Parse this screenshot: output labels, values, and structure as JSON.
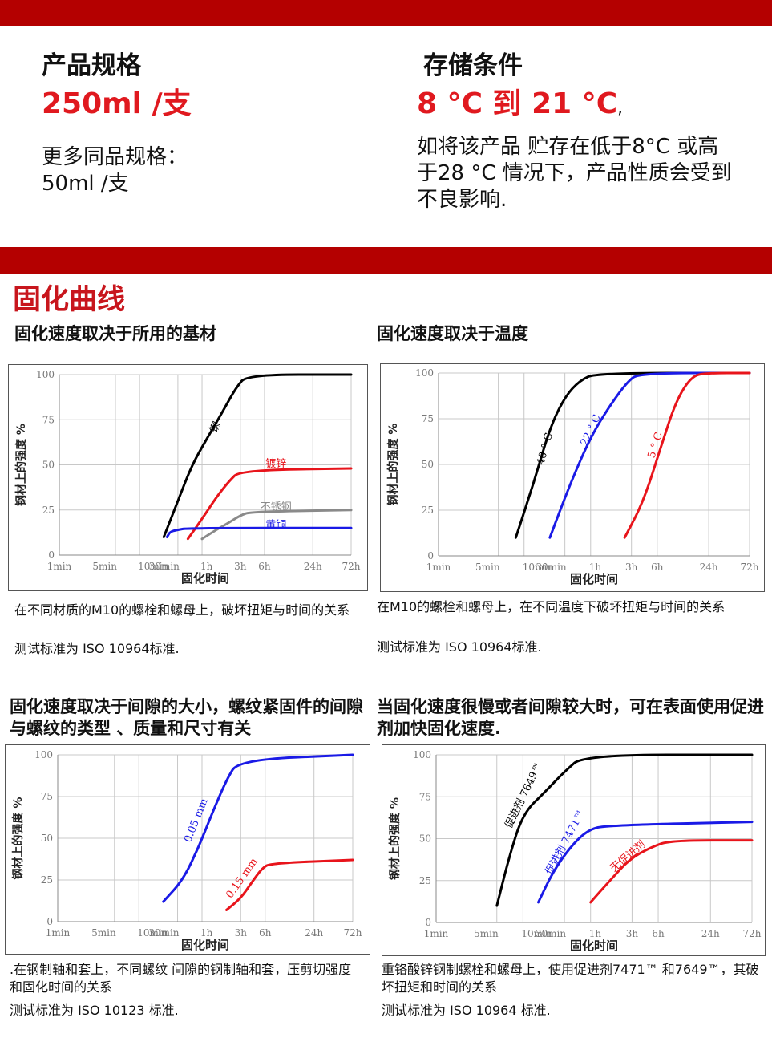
{
  "spec": {
    "heading": "产品规格",
    "value": "250ml /支",
    "more_label": "更多同品规格：",
    "more_value": "50ml /支"
  },
  "storage": {
    "heading": "存储条件",
    "value": "8 °C 到 21 °C",
    "value_suffix": ",",
    "note": "如将该产品 贮存在低于8°C 或高于28 °C 情况下，产品性质会受到不良影响."
  },
  "section_title": "固化曲线",
  "axis": {
    "y_label": "钢材上的强度 %",
    "x_label": "固化时间",
    "y_ticks": [
      "0",
      "25",
      "50",
      "75",
      "100"
    ],
    "x_ticks": [
      "1min",
      "5min",
      "10min",
      "30min",
      "1h",
      "3h",
      "6h",
      "24h",
      "72h"
    ]
  },
  "colors": {
    "black": "#000000",
    "red": "#e8141b",
    "blue": "#1a1ae6",
    "gray": "#8a8a8a",
    "brand": "#b40000"
  },
  "charts": [
    {
      "title": "固化速度取决于所用的基材",
      "caption": "在不同材质的M10的螺栓和螺母上，破坏扭矩与时间的关系",
      "standard": "测试标准为 ISO 10964标准.",
      "chart_data": {
        "type": "line",
        "x_scale": "log (time)",
        "x_unit": "minutes",
        "ylim": [
          0,
          100
        ],
        "grid": true,
        "series": [
          {
            "name": "钢",
            "color": "black",
            "points": [
              [
                20,
                10
              ],
              [
                30,
                30
              ],
              [
                45,
                50
              ],
              [
                70,
                65
              ],
              [
                110,
                80
              ],
              [
                160,
                93
              ],
              [
                220,
                100
              ],
              [
                4320,
                100
              ]
            ]
          },
          {
            "name": "镀锌",
            "color": "red",
            "points": [
              [
                40,
                9
              ],
              [
                60,
                20
              ],
              [
                90,
                32
              ],
              [
                130,
                41
              ],
              [
                180,
                47
              ],
              [
                4320,
                48
              ]
            ]
          },
          {
            "name": "不锈钢",
            "color": "gray",
            "points": [
              [
                60,
                9
              ],
              [
                90,
                14
              ],
              [
                130,
                18
              ],
              [
                180,
                22
              ],
              [
                240,
                24
              ],
              [
                4320,
                25
              ]
            ]
          },
          {
            "name": "黄铜",
            "color": "blue",
            "points": [
              [
                22,
                10
              ],
              [
                24,
                13
              ],
              [
                30,
                14
              ],
              [
                40,
                15
              ],
              [
                4320,
                15
              ]
            ]
          }
        ]
      }
    },
    {
      "title": "固化速度取决于温度",
      "caption": "在M10的螺栓和螺母上，在不同温度下破坏扭矩与时间的关系",
      "standard": "测试标准为 ISO 10964标准.",
      "chart_data": {
        "type": "line",
        "x_scale": "log (time)",
        "x_unit": "minutes",
        "ylim": [
          0,
          100
        ],
        "grid": true,
        "series": [
          {
            "name": "40 ° C",
            "color": "black",
            "points": [
              [
                8,
                10
              ],
              [
                13,
                40
              ],
              [
                20,
                70
              ],
              [
                30,
                87
              ],
              [
                45,
                96
              ],
              [
                70,
                100
              ],
              [
                4320,
                100
              ]
            ]
          },
          {
            "name": "22 ° C",
            "color": "blue",
            "points": [
              [
                20,
                10
              ],
              [
                35,
                40
              ],
              [
                60,
                65
              ],
              [
                100,
                82
              ],
              [
                160,
                95
              ],
              [
                220,
                100
              ],
              [
                4320,
                100
              ]
            ]
          },
          {
            "name": "5 ° C",
            "color": "red",
            "points": [
              [
                150,
                10
              ],
              [
                250,
                30
              ],
              [
                400,
                60
              ],
              [
                600,
                85
              ],
              [
                900,
                98
              ],
              [
                1300,
                100
              ],
              [
                4320,
                100
              ]
            ]
          }
        ]
      }
    },
    {
      "title": "固化速度取决于间隙的大小，螺纹紧固件的间隙与螺纹的类型 、质量和尺寸有关",
      "caption": ".在钢制轴和套上，不同螺纹 间隙的钢制轴和套，压剪切强度和固化时间的关系",
      "standard": " 测试标准为 ISO 10123 标准.",
      "chart_data": {
        "type": "line",
        "x_scale": "log (time)",
        "x_unit": "minutes",
        "ylim": [
          0,
          100
        ],
        "grid": true,
        "series": [
          {
            "name": "0.05 mm",
            "color": "blue",
            "points": [
              [
                20,
                12
              ],
              [
                35,
                25
              ],
              [
                55,
                45
              ],
              [
                80,
                65
              ],
              [
                120,
                85
              ],
              [
                170,
                97
              ],
              [
                4320,
                100
              ]
            ]
          },
          {
            "name": "0.15 mm",
            "color": "red",
            "points": [
              [
                120,
                7
              ],
              [
                180,
                14
              ],
              [
                250,
                24
              ],
              [
                330,
                32
              ],
              [
                420,
                35
              ],
              [
                4320,
                37
              ]
            ]
          }
        ]
      }
    },
    {
      "title": "当固化速度很慢或者间隙较大时，可在表面使用促进剂加快固化速度.",
      "caption": "重铬酸锌钢制螺栓和螺母上，使用促进剂7471™ 和7649™，其破坏扭矩和时间的关系",
      "standard": "测试标准为 ISO 10964 标准.",
      "chart_data": {
        "type": "line",
        "x_scale": "log (time)",
        "x_unit": "minutes",
        "ylim": [
          0,
          100
        ],
        "grid": true,
        "series": [
          {
            "name": "促进剂 7649™",
            "color": "black",
            "points": [
              [
                5,
                10
              ],
              [
                7,
                40
              ],
              [
                10,
                65
              ],
              [
                18,
                78
              ],
              [
                30,
                90
              ],
              [
                50,
                100
              ],
              [
                4320,
                100
              ]
            ]
          },
          {
            "name": "促进剂 7471™",
            "color": "blue",
            "points": [
              [
                15,
                12
              ],
              [
                22,
                30
              ],
              [
                35,
                45
              ],
              [
                55,
                55
              ],
              [
                90,
                58
              ],
              [
                4320,
                60
              ]
            ]
          },
          {
            "name": "无促进剂",
            "color": "red",
            "points": [
              [
                60,
                12
              ],
              [
                100,
                25
              ],
              [
                170,
                38
              ],
              [
                300,
                45
              ],
              [
                500,
                49
              ],
              [
                4320,
                49
              ]
            ]
          }
        ]
      }
    }
  ]
}
